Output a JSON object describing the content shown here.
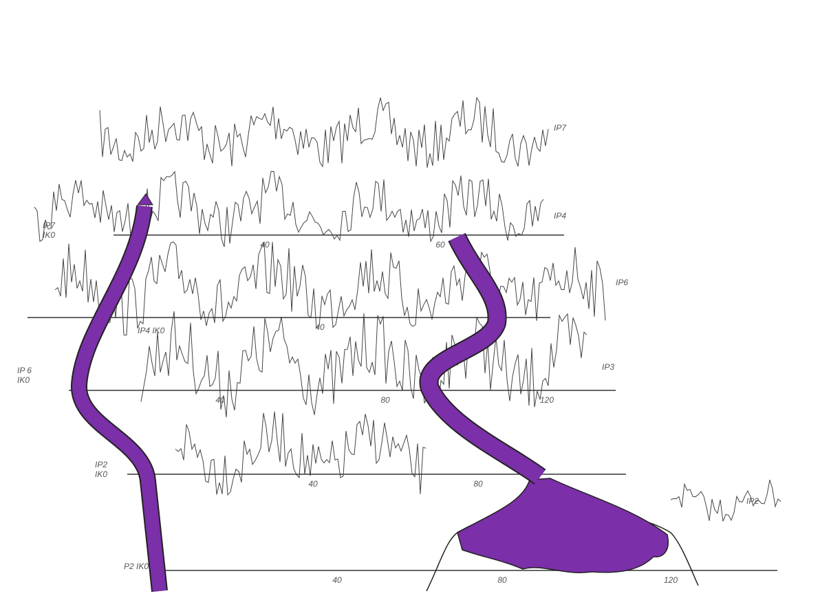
{
  "traces": [
    {
      "label": "IP7"
    },
    {
      "label": "IP4"
    },
    {
      "label": "IP6"
    },
    {
      "label": "IP3"
    },
    {
      "label": "IP2"
    }
  ],
  "baselines": [
    {
      "label_lines": [
        "IP7",
        "IK0"
      ],
      "ticks": [
        "40",
        "60"
      ]
    },
    {
      "label_lines": [
        "IP4 IK0"
      ],
      "ticks": [
        "40"
      ]
    },
    {
      "label_lines": [
        "IP 6",
        "IK0"
      ],
      "ticks": [
        "40",
        "80",
        "120"
      ]
    },
    {
      "label_lines": [
        "IP2",
        "IK0"
      ],
      "ticks": [
        "40",
        "80"
      ]
    },
    {
      "label_lines": [
        "P2 IK0"
      ],
      "ticks": [
        "40",
        "80",
        "120"
      ]
    }
  ]
}
